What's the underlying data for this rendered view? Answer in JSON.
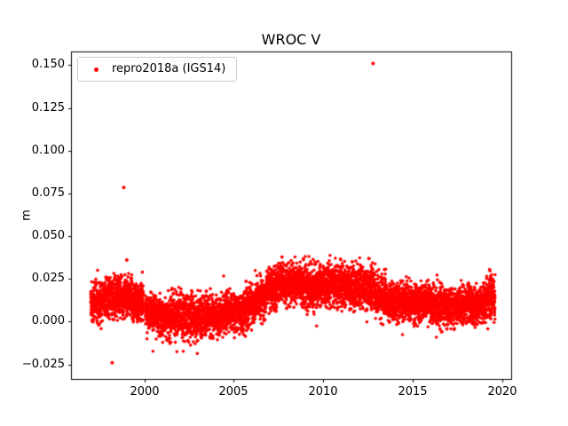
{
  "chart_data": {
    "type": "scatter",
    "title": "WROC V",
    "xlabel": "",
    "ylabel": "m",
    "xlim": [
      1995.9,
      2020.5
    ],
    "ylim": [
      -0.0335,
      0.158
    ],
    "grid": false,
    "xticks": {
      "values": [
        2000,
        2005,
        2010,
        2015,
        2020
      ],
      "labels": [
        "2000",
        "2005",
        "2010",
        "2015",
        "2020"
      ]
    },
    "yticks": {
      "values": [
        -0.025,
        0.0,
        0.025,
        0.05,
        0.075,
        0.1,
        0.125,
        0.15
      ],
      "labels": [
        "−0.025",
        "0.000",
        "0.025",
        "0.050",
        "0.075",
        "0.100",
        "0.125",
        "0.150"
      ]
    },
    "legend": {
      "location": "upper left",
      "entries": [
        {
          "label": "repro2018a (IGS14)",
          "color": "#ff0000",
          "marker": "point"
        }
      ]
    },
    "series": [
      {
        "name": "repro2018a (IGS14)",
        "color": "#ff0000",
        "marker": "point",
        "points_per_year": 330,
        "segments_format": "[x_start_year, x_end_year, y_center_m, y_sigma_m]",
        "band_segments": [
          [
            1997.0,
            1997.6,
            0.012,
            0.0055
          ],
          [
            1997.6,
            1998.2,
            0.013,
            0.0058
          ],
          [
            1998.2,
            1998.8,
            0.014,
            0.0058
          ],
          [
            1998.8,
            1999.4,
            0.015,
            0.006
          ],
          [
            1999.4,
            1999.95,
            0.012,
            0.0055
          ],
          [
            2000.05,
            2000.7,
            0.006,
            0.0052
          ],
          [
            2000.7,
            2001.4,
            0.003,
            0.0055
          ],
          [
            2001.4,
            2002.1,
            0.004,
            0.0058
          ],
          [
            2002.1,
            2002.8,
            0.002,
            0.0062
          ],
          [
            2002.8,
            2003.5,
            0.003,
            0.0062
          ],
          [
            2003.5,
            2004.2,
            0.004,
            0.0058
          ],
          [
            2004.2,
            2004.9,
            0.005,
            0.0055
          ],
          [
            2004.9,
            2005.6,
            0.006,
            0.0055
          ],
          [
            2005.6,
            2006.2,
            0.009,
            0.0055
          ],
          [
            2006.2,
            2006.8,
            0.014,
            0.0056
          ],
          [
            2006.8,
            2007.4,
            0.019,
            0.0056
          ],
          [
            2007.4,
            2008.2,
            0.022,
            0.0058
          ],
          [
            2008.2,
            2009.0,
            0.022,
            0.0058
          ],
          [
            2009.0,
            2009.8,
            0.02,
            0.0062
          ],
          [
            2009.8,
            2010.6,
            0.022,
            0.006
          ],
          [
            2010.6,
            2011.4,
            0.021,
            0.0058
          ],
          [
            2011.4,
            2012.2,
            0.02,
            0.0062
          ],
          [
            2012.2,
            2012.9,
            0.02,
            0.0062
          ],
          [
            2012.9,
            2013.5,
            0.015,
            0.0056
          ],
          [
            2013.5,
            2014.3,
            0.012,
            0.0052
          ],
          [
            2014.3,
            2015.1,
            0.012,
            0.0052
          ],
          [
            2015.1,
            2015.9,
            0.011,
            0.0052
          ],
          [
            2015.9,
            2016.7,
            0.009,
            0.0056
          ],
          [
            2016.7,
            2017.5,
            0.009,
            0.0056
          ],
          [
            2017.5,
            2018.3,
            0.01,
            0.0052
          ],
          [
            2018.3,
            2019.1,
            0.01,
            0.0052
          ],
          [
            2019.1,
            2019.6,
            0.013,
            0.0065
          ]
        ],
        "outliers": [
          [
            1998.2,
            -0.024
          ],
          [
            1998.85,
            0.0785
          ],
          [
            1999.02,
            0.036
          ],
          [
            2012.55,
            0.037
          ],
          [
            2012.78,
            0.151
          ]
        ]
      }
    ]
  }
}
